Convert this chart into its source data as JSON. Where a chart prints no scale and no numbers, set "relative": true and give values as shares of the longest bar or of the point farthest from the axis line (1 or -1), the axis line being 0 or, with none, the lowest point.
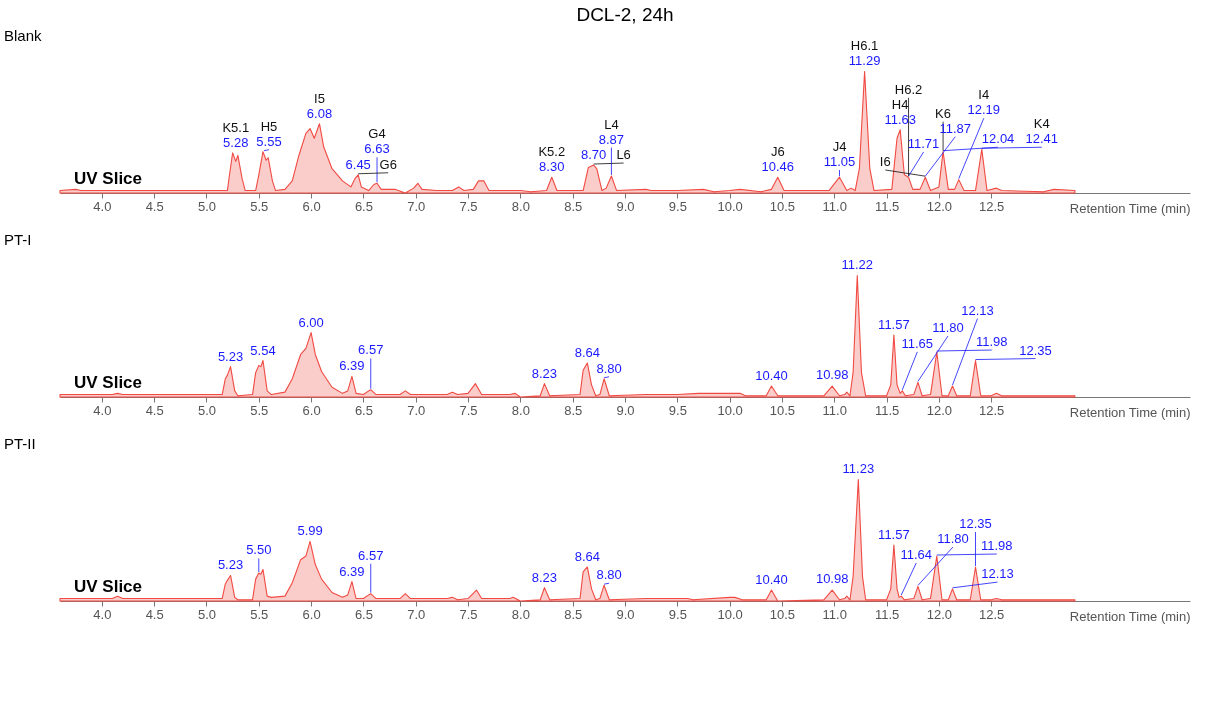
{
  "chart_data": [
    {
      "type": "area",
      "title": "DCL-2, 24h",
      "xlabel": "Retention Time (min)",
      "relative": true,
      "xlim": [
        3.6,
        14.4
      ],
      "xticks": [
        {
          "value": 4,
          "label": "4.0"
        },
        4.5,
        {
          "value": 5,
          "label": "5.0"
        },
        5.5,
        {
          "value": 6,
          "label": "6.0"
        },
        6.5,
        {
          "value": 7,
          "label": "7.0"
        },
        7.5,
        {
          "value": 8,
          "label": "8.0"
        },
        8.5,
        {
          "value": 9,
          "label": "9.0"
        },
        9.5,
        {
          "value": 10,
          "label": "10.0"
        },
        10.5,
        {
          "value": 11,
          "label": "11.0"
        },
        11.5,
        {
          "value": 12,
          "label": "12.0"
        },
        12.5
      ],
      "annotations": [
        "UV Slice",
        {
          "text": "5.28",
          "x": 5.28,
          "y": 0.33
        },
        {
          "text": "5.55",
          "x": 5.55,
          "y": 0.34
        },
        {
          "text": "6.08",
          "x": 6.08,
          "y": 0.57
        },
        {
          "text": "6.45",
          "x": 6.45,
          "y": 0.15
        },
        {
          "text": "6.63",
          "x": 6.63,
          "y": 0.08
        },
        {
          "text": "8.30",
          "x": 8.3,
          "y": 0.13
        },
        {
          "text": "8.70",
          "x": 8.7,
          "y": 0.23
        },
        {
          "text": "8.87",
          "x": 8.87,
          "y": 0.14
        },
        {
          "text": "10.46",
          "x": 10.46,
          "y": 0.13
        },
        {
          "text": "11.05",
          "x": 11.05,
          "y": 0.13
        },
        {
          "text": "11.29",
          "x": 11.29,
          "y": 1.0
        },
        {
          "text": "11.63",
          "x": 11.63,
          "y": 0.52
        },
        {
          "text": "11.71",
          "x": 11.71,
          "y": 0.13
        },
        {
          "text": "11.87",
          "x": 11.87,
          "y": 0.13
        },
        {
          "text": "12.04",
          "x": 12.04,
          "y": 0.34
        },
        {
          "text": "12.19",
          "x": 12.19,
          "y": 0.11
        },
        {
          "text": "12.41",
          "x": 12.41,
          "y": 0.36
        },
        {
          "text": "K5.1",
          "x": 5.28,
          "y": 0.33
        },
        {
          "text": "H5",
          "x": 5.55,
          "y": 0.34
        },
        {
          "text": "I5",
          "x": 6.08,
          "y": 0.57
        },
        {
          "text": "G6",
          "x": 6.45,
          "y": 0.15
        },
        {
          "text": "G4",
          "x": 6.63,
          "y": 0.08
        },
        {
          "text": "K5.2",
          "x": 8.3,
          "y": 0.13
        },
        {
          "text": "L6",
          "x": 8.7,
          "y": 0.23
        },
        {
          "text": "L4",
          "x": 8.87,
          "y": 0.14
        },
        {
          "text": "J6",
          "x": 10.46,
          "y": 0.13
        },
        {
          "text": "J4",
          "x": 11.05,
          "y": 0.13
        },
        {
          "text": "H6.1",
          "x": 11.29,
          "y": 1.0
        },
        {
          "text": "H4",
          "x": 11.63,
          "y": 0.52
        },
        {
          "text": "H6.2",
          "x": 11.71,
          "y": 0.13
        },
        {
          "text": "I6",
          "x": 11.87,
          "y": 0.13
        },
        {
          "text": "K6",
          "x": 12.04,
          "y": 0.34
        },
        {
          "text": "I4",
          "x": 12.19,
          "y": 0.11
        },
        {
          "text": "K4",
          "x": 12.41,
          "y": 0.36
        }
      ],
      "series": [
        {
          "name": "Blank",
          "color": "#f04a42",
          "x": [
            3.6,
            3.75,
            3.8,
            5.2,
            5.22,
            5.25,
            5.28,
            5.3,
            5.34,
            5.37,
            5.47,
            5.5,
            5.54,
            5.57,
            5.59,
            5.63,
            5.66,
            5.75,
            5.82,
            5.88,
            5.95,
            5.99,
            6.03,
            6.08,
            6.12,
            6.2,
            6.3,
            6.38,
            6.42,
            6.45,
            6.48,
            6.55,
            6.6,
            6.63,
            6.67,
            6.8,
            6.9,
            6.98,
            7.02,
            7.06,
            7.2,
            7.35,
            7.41,
            7.46,
            7.55,
            7.6,
            7.65,
            7.7,
            8.0,
            8.1,
            8.25,
            8.3,
            8.35,
            8.6,
            8.65,
            8.7,
            8.73,
            8.78,
            8.82,
            8.87,
            8.92,
            9.2,
            9.25,
            9.5,
            9.75,
            9.85,
            10.0,
            10.1,
            10.3,
            10.4,
            10.46,
            10.52,
            10.95,
            11.05,
            11.12,
            11.16,
            11.2,
            11.24,
            11.29,
            11.34,
            11.38,
            11.55,
            11.6,
            11.63,
            11.67,
            11.71,
            11.75,
            11.82,
            11.87,
            11.92,
            12.0,
            12.04,
            12.09,
            12.15,
            12.19,
            12.24,
            12.35,
            12.41,
            12.46,
            12.55,
            12.6,
            13.0,
            13.1,
            13.3
          ],
          "values": [
            0.02,
            0.03,
            0.02,
            0.02,
            0.15,
            0.33,
            0.26,
            0.31,
            0.12,
            0.02,
            0.02,
            0.15,
            0.34,
            0.27,
            0.29,
            0.1,
            0.02,
            0.03,
            0.1,
            0.3,
            0.49,
            0.53,
            0.45,
            0.57,
            0.38,
            0.2,
            0.1,
            0.05,
            0.12,
            0.15,
            0.05,
            0.02,
            0.07,
            0.08,
            0.03,
            0.03,
            0,
            0.04,
            0.08,
            0.03,
            0.02,
            0.02,
            0.05,
            0.02,
            0.03,
            0.1,
            0.1,
            0.02,
            0.02,
            0.01,
            0.02,
            0.13,
            0.02,
            0.02,
            0.21,
            0.23,
            0.2,
            0.02,
            0.04,
            0.14,
            0.02,
            0.03,
            0.02,
            0.02,
            0.03,
            0.01,
            0.02,
            0.03,
            0.01,
            0.03,
            0.13,
            0.02,
            0.02,
            0.13,
            0.02,
            0.04,
            0.02,
            0.2,
            1.0,
            0.2,
            0.02,
            0.03,
            0.45,
            0.52,
            0.15,
            0.13,
            0.03,
            0.03,
            0.13,
            0.02,
            0.05,
            0.34,
            0.03,
            0.03,
            0.11,
            0.02,
            0.02,
            0.36,
            0.02,
            0.04,
            0.02,
            0.01,
            0.03,
            0.02
          ]
        }
      ]
    },
    {
      "type": "area",
      "xlabel": "Retention Time (min)",
      "relative": true,
      "xlim": [
        3.6,
        14.4
      ],
      "xticks": [
        {
          "value": 4,
          "label": "4.0"
        },
        4.5,
        {
          "value": 5,
          "label": "5.0"
        },
        5.5,
        {
          "value": 6,
          "label": "6.0"
        },
        6.5,
        {
          "value": 7,
          "label": "7.0"
        },
        7.5,
        {
          "value": 8,
          "label": "8.0"
        },
        8.5,
        {
          "value": 9,
          "label": "9.0"
        },
        9.5,
        {
          "value": 10,
          "label": "10.0"
        },
        10.5,
        {
          "value": 11,
          "label": "11.0"
        },
        11.5,
        {
          "value": 12,
          "label": "12.0"
        },
        12.5
      ],
      "annotations": [
        "UV Slice",
        {
          "text": "5.23",
          "x": 5.23,
          "y": 0.25
        },
        {
          "text": "5.54",
          "x": 5.54,
          "y": 0.3
        },
        {
          "text": "6.00",
          "x": 6.0,
          "y": 0.53
        },
        {
          "text": "6.39",
          "x": 6.39,
          "y": 0.17
        },
        {
          "text": "6.57",
          "x": 6.57,
          "y": 0.06
        },
        {
          "text": "8.23",
          "x": 8.23,
          "y": 0.11
        },
        {
          "text": "8.64",
          "x": 8.64,
          "y": 0.28
        },
        {
          "text": "8.80",
          "x": 8.8,
          "y": 0.15
        },
        {
          "text": "10.40",
          "x": 10.4,
          "y": 0.09
        },
        {
          "text": "10.98",
          "x": 10.98,
          "y": 0.09
        },
        {
          "text": "11.22",
          "x": 11.22,
          "y": 1.0
        },
        {
          "text": "11.57",
          "x": 11.57,
          "y": 0.51
        },
        {
          "text": "11.65",
          "x": 11.65,
          "y": 0.05
        },
        {
          "text": "11.80",
          "x": 11.8,
          "y": 0.12
        },
        {
          "text": "11.98",
          "x": 11.98,
          "y": 0.37
        },
        {
          "text": "12.13",
          "x": 12.13,
          "y": 0.09
        },
        {
          "text": "12.35",
          "x": 12.35,
          "y": 0.3
        }
      ],
      "series": [
        {
          "name": "PT-I",
          "color": "#f04a42",
          "x": [
            3.6,
            4.1,
            4.15,
            4.2,
            5.15,
            5.18,
            5.2,
            5.23,
            5.27,
            5.3,
            5.44,
            5.47,
            5.5,
            5.52,
            5.54,
            5.58,
            5.62,
            5.75,
            5.82,
            5.9,
            5.95,
            6.0,
            6.04,
            6.1,
            6.2,
            6.3,
            6.35,
            6.39,
            6.43,
            6.5,
            6.55,
            6.57,
            6.62,
            6.85,
            6.9,
            6.95,
            7.3,
            7.35,
            7.4,
            7.5,
            7.57,
            7.63,
            7.9,
            7.95,
            8.0,
            8.19,
            8.23,
            8.28,
            8.57,
            8.6,
            8.64,
            8.68,
            8.72,
            8.76,
            8.8,
            8.85,
            9.2,
            9.5,
            9.7,
            10.1,
            10.15,
            10.35,
            10.4,
            10.46,
            10.9,
            10.98,
            11.05,
            11.1,
            11.12,
            11.15,
            11.18,
            11.22,
            11.26,
            11.3,
            11.5,
            11.54,
            11.57,
            11.6,
            11.63,
            11.65,
            11.68,
            11.76,
            11.8,
            11.84,
            11.92,
            11.98,
            12.03,
            12.09,
            12.13,
            12.17,
            12.3,
            12.35,
            12.4,
            12.5,
            12.55,
            12.6,
            13.3
          ],
          "values": [
            0.02,
            0.02,
            0.03,
            0.02,
            0.02,
            0.15,
            0.18,
            0.25,
            0.05,
            0.01,
            0.02,
            0.2,
            0.26,
            0.25,
            0.3,
            0.05,
            0.02,
            0.04,
            0.15,
            0.35,
            0.4,
            0.53,
            0.35,
            0.21,
            0.08,
            0.03,
            0.05,
            0.17,
            0.03,
            0.02,
            0.05,
            0.06,
            0.02,
            0.02,
            0.05,
            0.02,
            0.02,
            0.04,
            0.02,
            0.03,
            0.11,
            0.02,
            0.02,
            0.03,
            0,
            0.01,
            0.11,
            0.01,
            0.02,
            0.22,
            0.28,
            0.1,
            0.01,
            0.02,
            0.15,
            0.01,
            0.02,
            0.02,
            0.03,
            0.03,
            0.01,
            0.01,
            0.09,
            0.01,
            0.01,
            0.09,
            0.01,
            0.02,
            0.04,
            0.01,
            0.2,
            1.0,
            0.2,
            0.01,
            0.01,
            0.1,
            0.51,
            0.1,
            0.03,
            0.05,
            0.01,
            0.02,
            0.12,
            0.01,
            0.02,
            0.37,
            0.01,
            0.01,
            0.09,
            0.01,
            0.01,
            0.3,
            0.01,
            0.01,
            0.03,
            0.01,
            0.01
          ]
        }
      ]
    },
    {
      "type": "area",
      "xlabel": "Retention Time (min)",
      "relative": true,
      "xlim": [
        3.6,
        14.4
      ],
      "xticks": [
        {
          "value": 4,
          "label": "4.0"
        },
        4.5,
        {
          "value": 5,
          "label": "5.0"
        },
        5.5,
        {
          "value": 6,
          "label": "6.0"
        },
        6.5,
        {
          "value": 7,
          "label": "7.0"
        },
        7.5,
        {
          "value": 8,
          "label": "8.0"
        },
        8.5,
        {
          "value": 9,
          "label": "9.0"
        },
        9.5,
        {
          "value": 10,
          "label": "10.0"
        },
        10.5,
        {
          "value": 11,
          "label": "11.0"
        },
        11.5,
        {
          "value": 12,
          "label": "12.0"
        },
        12.5
      ],
      "annotations": [
        "UV Slice",
        {
          "text": "5.23",
          "x": 5.23,
          "y": 0.21
        },
        {
          "text": "5.50",
          "x": 5.5,
          "y": 0.23
        },
        {
          "text": "5.99",
          "x": 5.99,
          "y": 0.49
        },
        {
          "text": "6.39",
          "x": 6.39,
          "y": 0.16
        },
        {
          "text": "6.57",
          "x": 6.57,
          "y": 0.06
        },
        {
          "text": "8.23",
          "x": 8.23,
          "y": 0.11
        },
        {
          "text": "8.64",
          "x": 8.64,
          "y": 0.28
        },
        {
          "text": "8.80",
          "x": 8.8,
          "y": 0.13
        },
        {
          "text": "10.40",
          "x": 10.4,
          "y": 0.09
        },
        {
          "text": "10.98",
          "x": 10.98,
          "y": 0.09
        },
        {
          "text": "11.23",
          "x": 11.23,
          "y": 1.0
        },
        {
          "text": "11.57",
          "x": 11.57,
          "y": 0.46
        },
        {
          "text": "11.64",
          "x": 11.64,
          "y": 0.04
        },
        {
          "text": "11.80",
          "x": 11.8,
          "y": 0.12
        },
        {
          "text": "11.98",
          "x": 11.98,
          "y": 0.37
        },
        {
          "text": "12.13",
          "x": 12.13,
          "y": 0.1
        },
        {
          "text": "12.35",
          "x": 12.35,
          "y": 0.28
        }
      ],
      "series": [
        {
          "name": "PT-II",
          "color": "#f04a42",
          "x": [
            3.6,
            4.1,
            4.15,
            4.2,
            5.15,
            5.18,
            5.2,
            5.23,
            5.27,
            5.3,
            5.44,
            5.47,
            5.5,
            5.52,
            5.54,
            5.58,
            5.62,
            5.75,
            5.82,
            5.9,
            5.95,
            5.99,
            6.04,
            6.1,
            6.2,
            6.3,
            6.35,
            6.39,
            6.43,
            6.5,
            6.55,
            6.57,
            6.62,
            6.85,
            6.9,
            6.95,
            7.3,
            7.35,
            7.4,
            7.5,
            7.58,
            7.63,
            7.9,
            7.93,
            8.0,
            8.19,
            8.23,
            8.28,
            8.57,
            8.6,
            8.64,
            8.68,
            8.72,
            8.76,
            8.8,
            8.85,
            9.2,
            9.6,
            9.65,
            10.0,
            10.05,
            10.12,
            10.35,
            10.4,
            10.46,
            10.9,
            10.98,
            11.05,
            11.1,
            11.12,
            11.15,
            11.18,
            11.23,
            11.27,
            11.3,
            11.5,
            11.54,
            11.57,
            11.6,
            11.62,
            11.64,
            11.67,
            11.76,
            11.8,
            11.84,
            11.92,
            11.98,
            12.03,
            12.09,
            12.13,
            12.17,
            12.3,
            12.35,
            12.4,
            12.5,
            12.55,
            12.6,
            13.3
          ],
          "values": [
            0.02,
            0.02,
            0.04,
            0.02,
            0.02,
            0.14,
            0.17,
            0.21,
            0.03,
            0.01,
            0.01,
            0.18,
            0.23,
            0.22,
            0.26,
            0.04,
            0.03,
            0.04,
            0.15,
            0.34,
            0.37,
            0.49,
            0.3,
            0.18,
            0.07,
            0.03,
            0.05,
            0.16,
            0.02,
            0.02,
            0.05,
            0.06,
            0.02,
            0.02,
            0.06,
            0.02,
            0.02,
            0.03,
            0.01,
            0.02,
            0.09,
            0.02,
            0.02,
            0.03,
            0,
            0.01,
            0.11,
            0.01,
            0.02,
            0.24,
            0.28,
            0.1,
            0.01,
            0.02,
            0.13,
            0.01,
            0.02,
            0.02,
            0.01,
            0.03,
            0.03,
            0.01,
            0.01,
            0.09,
            0,
            0.01,
            0.09,
            0.01,
            0.02,
            0.04,
            0.01,
            0.2,
            1.0,
            0.2,
            0.01,
            0.01,
            0.1,
            0.46,
            0.1,
            0.03,
            0.04,
            0.01,
            0.02,
            0.12,
            0.01,
            0.02,
            0.37,
            0.01,
            0.01,
            0.1,
            0.01,
            0.01,
            0.28,
            0.01,
            0.01,
            0.02,
            0.01,
            0.01
          ]
        }
      ]
    }
  ]
}
